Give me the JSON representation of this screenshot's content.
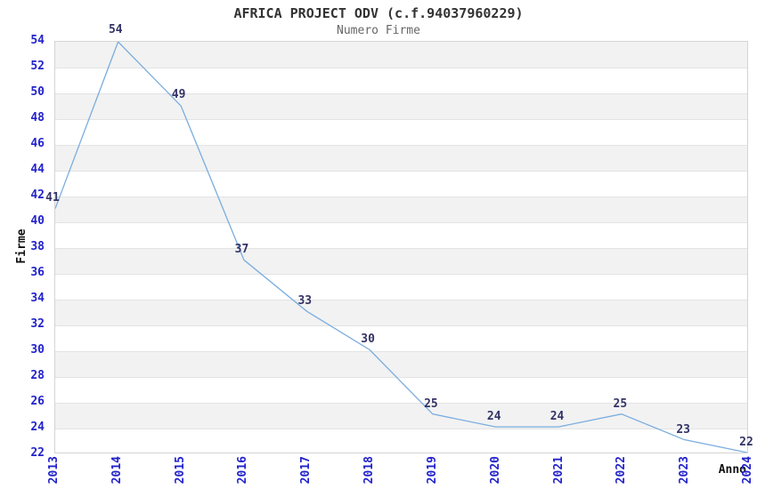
{
  "chart_data": {
    "type": "line",
    "title": "AFRICA PROJECT ODV (c.f.94037960229)",
    "subtitle": "Numero Firme",
    "xlabel": "Anno",
    "ylabel": "Firme",
    "categories": [
      "2013",
      "2014",
      "2015",
      "2016",
      "2017",
      "2018",
      "2019",
      "2020",
      "2021",
      "2022",
      "2023",
      "2024"
    ],
    "series": [
      {
        "name": "Numero Firme",
        "values": [
          41,
          54,
          49,
          37,
          33,
          30,
          25,
          24,
          24,
          25,
          23,
          22
        ]
      }
    ],
    "point_labels": [
      "41",
      "54",
      "49",
      "37",
      "33",
      "30",
      "25",
      "24",
      "24",
      "25",
      "23",
      "22"
    ],
    "ylim": [
      22,
      54
    ],
    "ytick_step": 2,
    "legend": "none",
    "grid": "horizontal-bands",
    "colors": {
      "line": "#7aaddf",
      "tick_label": "#2222cc",
      "point_label": "#333366",
      "band": "#f2f2f2",
      "gridline": "#e3e3e3",
      "plot_border": "#d4d4d4",
      "title": "#333333",
      "subtitle": "#666666",
      "axis_label": "#111111",
      "background": "#ffffff"
    }
  }
}
